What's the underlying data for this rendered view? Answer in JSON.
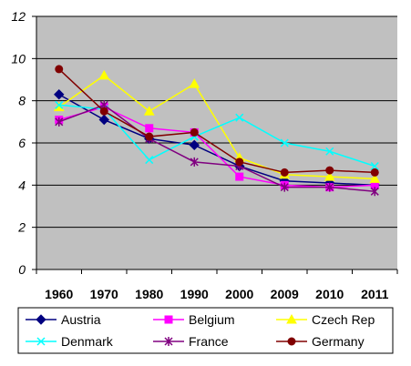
{
  "chart_data": {
    "type": "line",
    "title": "",
    "xlabel": "",
    "ylabel": "",
    "categories": [
      "1960",
      "1970",
      "1980",
      "1990",
      "2000",
      "2009",
      "2010",
      "2011"
    ],
    "ylim": [
      0,
      12
    ],
    "yticks": [
      0,
      2,
      4,
      6,
      8,
      10,
      12
    ],
    "grid": true,
    "legend_position": "bottom",
    "plot_background": "#c0c0c0",
    "series": [
      {
        "name": "Austria",
        "color": "#000080",
        "marker": "diamond",
        "values": [
          8.3,
          7.1,
          6.2,
          5.9,
          4.9,
          4.2,
          4.1,
          4.0
        ]
      },
      {
        "name": "Belgium",
        "color": "#ff00ff",
        "marker": "square",
        "values": [
          7.1,
          7.7,
          6.7,
          6.5,
          4.4,
          4.0,
          3.9,
          4.0
        ]
      },
      {
        "name": "Czech Rep",
        "color": "#ffff00",
        "marker": "triangle",
        "values": [
          7.7,
          9.2,
          7.5,
          8.8,
          5.3,
          4.5,
          4.4,
          4.3
        ]
      },
      {
        "name": "Denmark",
        "color": "#00ffff",
        "marker": "x",
        "values": [
          7.8,
          7.6,
          5.2,
          6.3,
          7.2,
          6.0,
          5.6,
          4.9
        ]
      },
      {
        "name": "France",
        "color": "#800080",
        "marker": "star",
        "values": [
          7.0,
          7.8,
          6.2,
          5.1,
          4.9,
          3.9,
          3.9,
          3.7
        ]
      },
      {
        "name": "Germany",
        "color": "#800000",
        "marker": "circle",
        "values": [
          9.5,
          7.5,
          6.3,
          6.5,
          5.1,
          4.6,
          4.7,
          4.6
        ]
      }
    ]
  }
}
